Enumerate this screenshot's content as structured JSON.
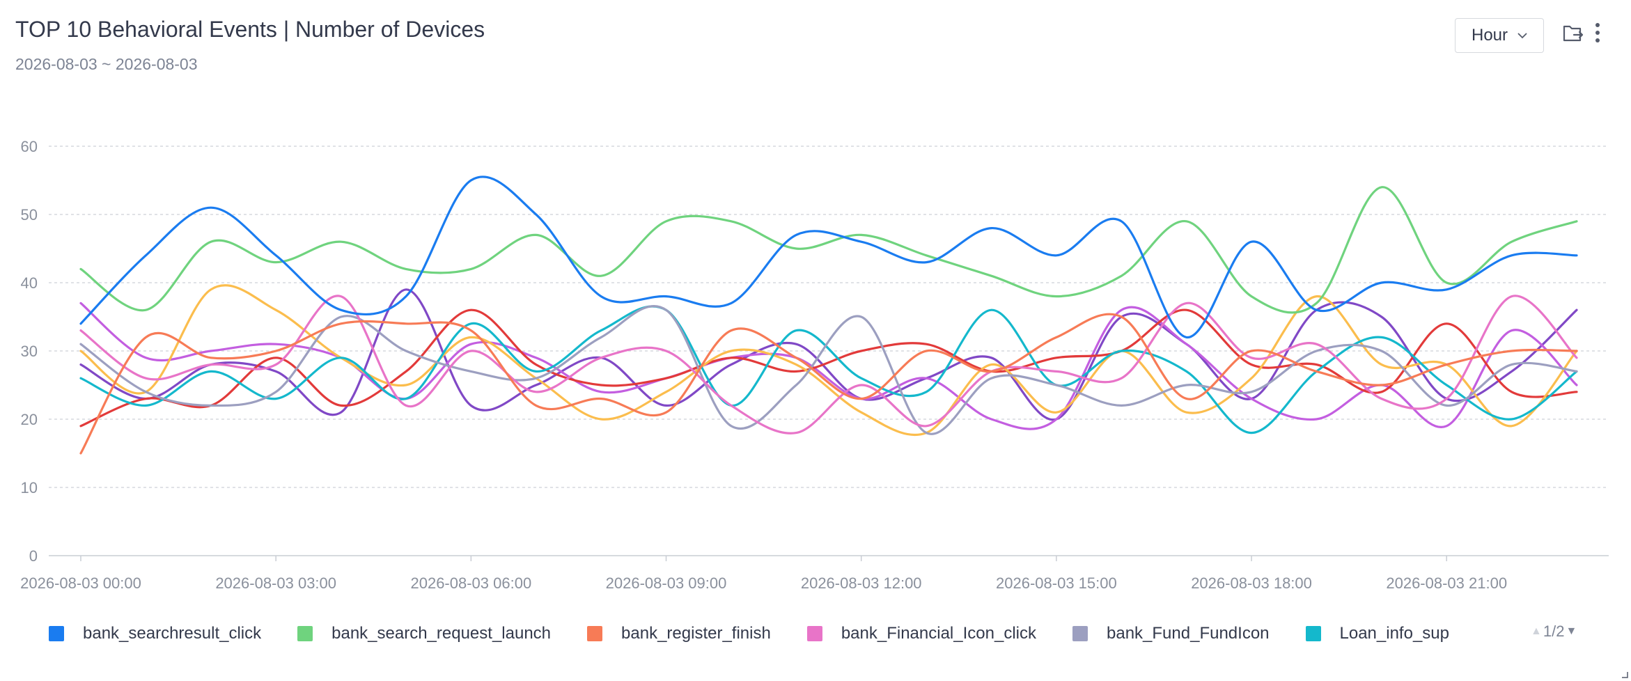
{
  "header": {
    "title": "TOP 10 Behavioral Events | Number of Devices",
    "date_range": "2026-08-03 ~ 2026-08-03"
  },
  "toolbar": {
    "period_value": "Hour",
    "icons": [
      "export-folder-icon",
      "more-vertical-icon"
    ]
  },
  "legend": {
    "pager": "1/2"
  },
  "colors": {
    "axis_text": "#8a909c",
    "grid": "#d6d9de"
  },
  "chart_data": {
    "type": "line",
    "title": "TOP 10 Behavioral Events | Number of Devices",
    "xlabel": "",
    "ylabel": "",
    "ylim": [
      0,
      60
    ],
    "yticks": [
      0,
      10,
      20,
      30,
      40,
      50,
      60
    ],
    "grid": true,
    "legend_position": "bottom",
    "x": [
      "2026-08-03 00:00",
      "2026-08-03 01:00",
      "2026-08-03 02:00",
      "2026-08-03 03:00",
      "2026-08-03 04:00",
      "2026-08-03 05:00",
      "2026-08-03 06:00",
      "2026-08-03 07:00",
      "2026-08-03 08:00",
      "2026-08-03 09:00",
      "2026-08-03 10:00",
      "2026-08-03 11:00",
      "2026-08-03 12:00",
      "2026-08-03 13:00",
      "2026-08-03 14:00",
      "2026-08-03 15:00",
      "2026-08-03 16:00",
      "2026-08-03 17:00",
      "2026-08-03 18:00",
      "2026-08-03 19:00",
      "2026-08-03 20:00",
      "2026-08-03 21:00",
      "2026-08-03 22:00",
      "2026-08-03 23:00"
    ],
    "xtick_labels": [
      "2026-08-03 00:00",
      "2026-08-03 03:00",
      "2026-08-03 06:00",
      "2026-08-03 09:00",
      "2026-08-03 12:00",
      "2026-08-03 15:00",
      "2026-08-03 18:00",
      "2026-08-03 21:00"
    ],
    "series": [
      {
        "name": "bank_searchresult_click",
        "color": "#1a7cf0",
        "values": [
          34,
          44,
          51,
          44,
          36,
          38,
          55,
          50,
          38,
          38,
          37,
          47,
          46,
          43,
          48,
          44,
          49,
          32,
          46,
          36,
          40,
          39,
          44,
          44
        ]
      },
      {
        "name": "bank_search_request_launch",
        "color": "#6fd37e",
        "values": [
          42,
          36,
          46,
          43,
          46,
          42,
          42,
          47,
          41,
          49,
          49,
          45,
          47,
          44,
          41,
          38,
          41,
          49,
          38,
          37,
          54,
          40,
          46,
          49
        ]
      },
      {
        "name": "bank_register_finish",
        "color": "#f77b56",
        "values": [
          15,
          32,
          29,
          30,
          34,
          34,
          33,
          22,
          23,
          21,
          33,
          29,
          23,
          30,
          27,
          32,
          35,
          23,
          30,
          27,
          25,
          28,
          30,
          30
        ]
      },
      {
        "name": "bank_Financial_Icon_click",
        "color": "#e874c8",
        "values": [
          33,
          26,
          28,
          28,
          38,
          22,
          30,
          24,
          29,
          30,
          22,
          18,
          25,
          19,
          27,
          27,
          26,
          37,
          29,
          31,
          23,
          23,
          38,
          29
        ]
      },
      {
        "name": "bank_Fund_FundIcon",
        "color": "#9c9fc0",
        "values": [
          31,
          24,
          22,
          24,
          35,
          30,
          27,
          26,
          32,
          36,
          19,
          25,
          35,
          18,
          26,
          25,
          22,
          25,
          24,
          30,
          30,
          22,
          28,
          27
        ]
      },
      {
        "name": "Loan_info_sup",
        "color": "#14b8cc",
        "values": [
          26,
          22,
          27,
          23,
          29,
          23,
          34,
          27,
          33,
          36,
          22,
          33,
          26,
          24,
          36,
          25,
          30,
          27,
          18,
          27,
          32,
          25,
          20,
          27
        ]
      },
      {
        "values": [
          30,
          24,
          39,
          36,
          29,
          25,
          32,
          26,
          20,
          24,
          30,
          28,
          21,
          18,
          28,
          21,
          30,
          21,
          26,
          38,
          28,
          28,
          19,
          30
        ],
        "color": "#fbbd4d"
      },
      {
        "values": [
          19,
          23,
          22,
          29,
          22,
          27,
          36,
          28,
          25,
          26,
          29,
          27,
          30,
          31,
          27,
          29,
          30,
          36,
          28,
          28,
          24,
          34,
          24,
          24
        ],
        "color": "#e23a3a"
      },
      {
        "values": [
          37,
          29,
          30,
          31,
          29,
          23,
          31,
          29,
          24,
          26,
          29,
          29,
          23,
          26,
          20,
          20,
          36,
          31,
          23,
          20,
          25,
          19,
          33,
          25
        ],
        "color": "#c35ee0"
      },
      {
        "values": [
          28,
          23,
          28,
          27,
          21,
          39,
          22,
          25,
          29,
          22,
          28,
          31,
          23,
          26,
          29,
          20,
          35,
          31,
          23,
          36,
          35,
          23,
          27,
          36
        ],
        "color": "#8048c6"
      }
    ]
  }
}
